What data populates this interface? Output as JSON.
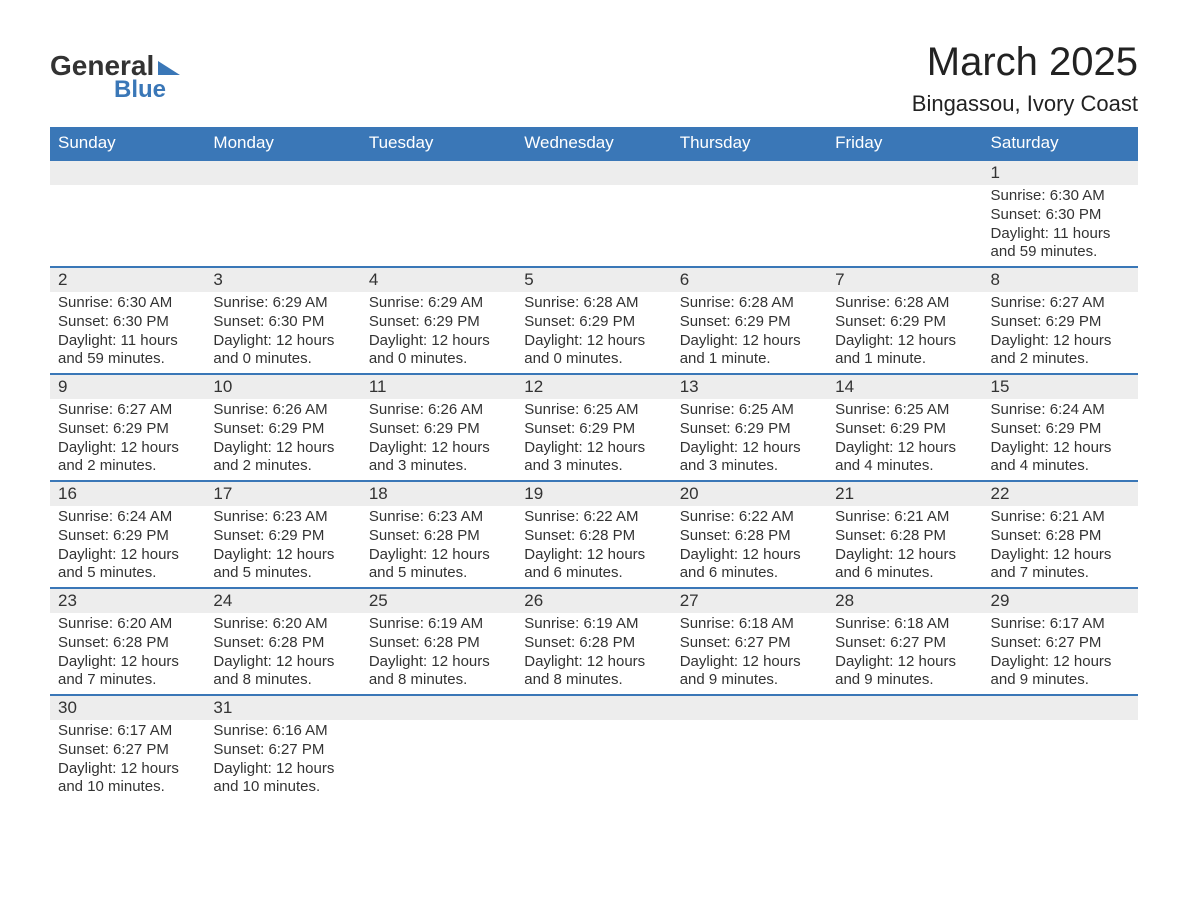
{
  "brand": {
    "word1": "General",
    "word2": "Blue",
    "accent": "#3a77b7"
  },
  "title": "March 2025",
  "location": "Bingassou, Ivory Coast",
  "weekdays": [
    "Sunday",
    "Monday",
    "Tuesday",
    "Wednesday",
    "Thursday",
    "Friday",
    "Saturday"
  ],
  "colors": {
    "header_bg": "#3a77b7",
    "header_text": "#ffffff",
    "daynum_bg": "#ededed",
    "row_border": "#3a77b7",
    "text": "#333333",
    "page_bg": "#ffffff"
  },
  "typography": {
    "title_fontsize": 40,
    "location_fontsize": 22,
    "weekday_fontsize": 17,
    "daynum_fontsize": 17,
    "body_fontsize": 15
  },
  "layout": {
    "cols": 7,
    "rows": 6,
    "first_weekday_index": 6,
    "days_in_month": 31
  },
  "days": [
    {
      "n": 1,
      "sunrise": "6:30 AM",
      "sunset": "6:30 PM",
      "daylight": "11 hours and 59 minutes."
    },
    {
      "n": 2,
      "sunrise": "6:30 AM",
      "sunset": "6:30 PM",
      "daylight": "11 hours and 59 minutes."
    },
    {
      "n": 3,
      "sunrise": "6:29 AM",
      "sunset": "6:30 PM",
      "daylight": "12 hours and 0 minutes."
    },
    {
      "n": 4,
      "sunrise": "6:29 AM",
      "sunset": "6:29 PM",
      "daylight": "12 hours and 0 minutes."
    },
    {
      "n": 5,
      "sunrise": "6:28 AM",
      "sunset": "6:29 PM",
      "daylight": "12 hours and 0 minutes."
    },
    {
      "n": 6,
      "sunrise": "6:28 AM",
      "sunset": "6:29 PM",
      "daylight": "12 hours and 1 minute."
    },
    {
      "n": 7,
      "sunrise": "6:28 AM",
      "sunset": "6:29 PM",
      "daylight": "12 hours and 1 minute."
    },
    {
      "n": 8,
      "sunrise": "6:27 AM",
      "sunset": "6:29 PM",
      "daylight": "12 hours and 2 minutes."
    },
    {
      "n": 9,
      "sunrise": "6:27 AM",
      "sunset": "6:29 PM",
      "daylight": "12 hours and 2 minutes."
    },
    {
      "n": 10,
      "sunrise": "6:26 AM",
      "sunset": "6:29 PM",
      "daylight": "12 hours and 2 minutes."
    },
    {
      "n": 11,
      "sunrise": "6:26 AM",
      "sunset": "6:29 PM",
      "daylight": "12 hours and 3 minutes."
    },
    {
      "n": 12,
      "sunrise": "6:25 AM",
      "sunset": "6:29 PM",
      "daylight": "12 hours and 3 minutes."
    },
    {
      "n": 13,
      "sunrise": "6:25 AM",
      "sunset": "6:29 PM",
      "daylight": "12 hours and 3 minutes."
    },
    {
      "n": 14,
      "sunrise": "6:25 AM",
      "sunset": "6:29 PM",
      "daylight": "12 hours and 4 minutes."
    },
    {
      "n": 15,
      "sunrise": "6:24 AM",
      "sunset": "6:29 PM",
      "daylight": "12 hours and 4 minutes."
    },
    {
      "n": 16,
      "sunrise": "6:24 AM",
      "sunset": "6:29 PM",
      "daylight": "12 hours and 5 minutes."
    },
    {
      "n": 17,
      "sunrise": "6:23 AM",
      "sunset": "6:29 PM",
      "daylight": "12 hours and 5 minutes."
    },
    {
      "n": 18,
      "sunrise": "6:23 AM",
      "sunset": "6:28 PM",
      "daylight": "12 hours and 5 minutes."
    },
    {
      "n": 19,
      "sunrise": "6:22 AM",
      "sunset": "6:28 PM",
      "daylight": "12 hours and 6 minutes."
    },
    {
      "n": 20,
      "sunrise": "6:22 AM",
      "sunset": "6:28 PM",
      "daylight": "12 hours and 6 minutes."
    },
    {
      "n": 21,
      "sunrise": "6:21 AM",
      "sunset": "6:28 PM",
      "daylight": "12 hours and 6 minutes."
    },
    {
      "n": 22,
      "sunrise": "6:21 AM",
      "sunset": "6:28 PM",
      "daylight": "12 hours and 7 minutes."
    },
    {
      "n": 23,
      "sunrise": "6:20 AM",
      "sunset": "6:28 PM",
      "daylight": "12 hours and 7 minutes."
    },
    {
      "n": 24,
      "sunrise": "6:20 AM",
      "sunset": "6:28 PM",
      "daylight": "12 hours and 8 minutes."
    },
    {
      "n": 25,
      "sunrise": "6:19 AM",
      "sunset": "6:28 PM",
      "daylight": "12 hours and 8 minutes."
    },
    {
      "n": 26,
      "sunrise": "6:19 AM",
      "sunset": "6:28 PM",
      "daylight": "12 hours and 8 minutes."
    },
    {
      "n": 27,
      "sunrise": "6:18 AM",
      "sunset": "6:27 PM",
      "daylight": "12 hours and 9 minutes."
    },
    {
      "n": 28,
      "sunrise": "6:18 AM",
      "sunset": "6:27 PM",
      "daylight": "12 hours and 9 minutes."
    },
    {
      "n": 29,
      "sunrise": "6:17 AM",
      "sunset": "6:27 PM",
      "daylight": "12 hours and 9 minutes."
    },
    {
      "n": 30,
      "sunrise": "6:17 AM",
      "sunset": "6:27 PM",
      "daylight": "12 hours and 10 minutes."
    },
    {
      "n": 31,
      "sunrise": "6:16 AM",
      "sunset": "6:27 PM",
      "daylight": "12 hours and 10 minutes."
    }
  ],
  "labels": {
    "sunrise": "Sunrise:",
    "sunset": "Sunset:",
    "daylight": "Daylight:"
  }
}
